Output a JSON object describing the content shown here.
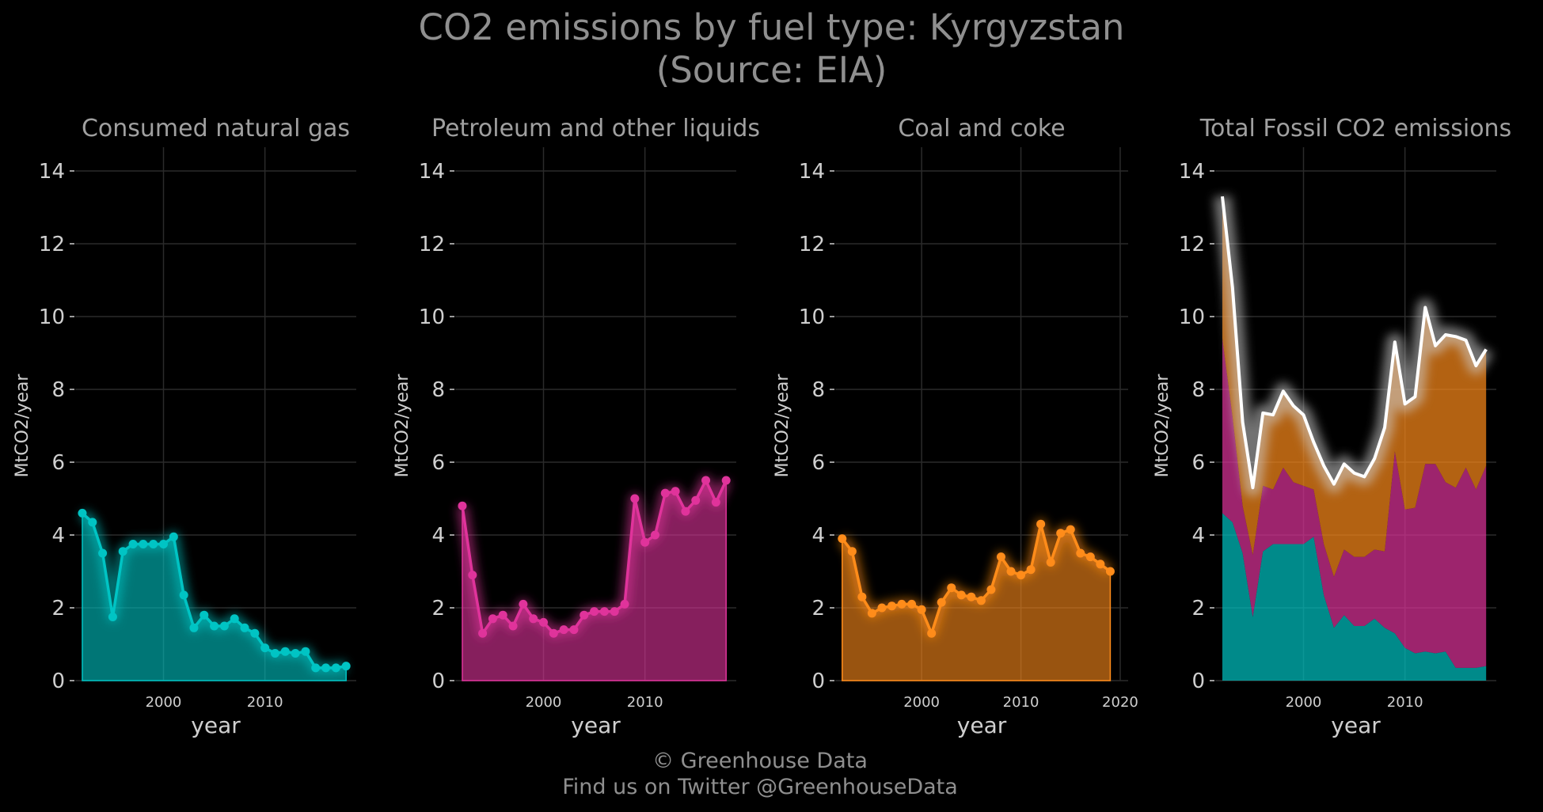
{
  "title": {
    "line1": "CO2 emissions by fuel type: Kyrgyzstan",
    "line2": "(Source: EIA)"
  },
  "caption": {
    "line1": "© Greenhouse Data",
    "line2": "Find us on Twitter @GreenhouseData"
  },
  "colors": {
    "gas": "#00c4c4",
    "petroleum": "#e0339b",
    "coal": "#ff8c1a",
    "total_line": "#ffffff",
    "grid": "#2b2b2b",
    "axis_text": "#cfcfcf",
    "panel_title": "#a0a0a0"
  },
  "chart_data": [
    {
      "type": "area",
      "title": "Consumed natural gas",
      "xlabel": "year",
      "ylabel": "MtCO2/year",
      "ylim": [
        0,
        14
      ],
      "yticks": [
        0,
        2,
        4,
        6,
        8,
        10,
        12,
        14
      ],
      "xticks": [
        2000,
        2010
      ],
      "x": [
        1992,
        1993,
        1994,
        1995,
        1996,
        1997,
        1998,
        1999,
        2000,
        2001,
        2002,
        2003,
        2004,
        2005,
        2006,
        2007,
        2008,
        2009,
        2010,
        2011,
        2012,
        2013,
        2014,
        2015,
        2016,
        2017,
        2018
      ],
      "series": [
        {
          "values": [
            4.6,
            4.35,
            3.5,
            1.75,
            3.55,
            3.75,
            3.75,
            3.75,
            3.75,
            3.95,
            2.35,
            1.45,
            1.8,
            1.5,
            1.5,
            1.7,
            1.45,
            1.3,
            0.9,
            0.75,
            0.8,
            0.75,
            0.8,
            0.35,
            0.35,
            0.35,
            0.4
          ],
          "color": "gas"
        }
      ],
      "grid": true
    },
    {
      "type": "area",
      "title": "Petroleum and other liquids",
      "xlabel": "year",
      "ylabel": "MtCO2/year",
      "ylim": [
        0,
        14
      ],
      "yticks": [
        0,
        2,
        4,
        6,
        8,
        10,
        12,
        14
      ],
      "xticks": [
        2000,
        2010
      ],
      "x": [
        1992,
        1993,
        1994,
        1995,
        1996,
        1997,
        1998,
        1999,
        2000,
        2001,
        2002,
        2003,
        2004,
        2005,
        2006,
        2007,
        2008,
        2009,
        2010,
        2011,
        2012,
        2013,
        2014,
        2015,
        2016,
        2017,
        2018
      ],
      "series": [
        {
          "values": [
            4.8,
            2.9,
            1.3,
            1.7,
            1.8,
            1.5,
            2.1,
            1.7,
            1.6,
            1.3,
            1.4,
            1.4,
            1.8,
            1.9,
            1.9,
            1.9,
            2.1,
            5.0,
            3.8,
            4.0,
            5.15,
            5.2,
            4.65,
            4.95,
            5.5,
            4.9,
            5.5
          ],
          "color": "petroleum"
        }
      ],
      "grid": true
    },
    {
      "type": "area",
      "title": "Coal and coke",
      "xlabel": "year",
      "ylabel": "MtCO2/year",
      "ylim": [
        0,
        14
      ],
      "yticks": [
        0,
        2,
        4,
        6,
        8,
        10,
        12,
        14
      ],
      "xticks": [
        2000,
        2010,
        2020
      ],
      "x": [
        1992,
        1993,
        1994,
        1995,
        1996,
        1997,
        1998,
        1999,
        2000,
        2001,
        2002,
        2003,
        2004,
        2005,
        2006,
        2007,
        2008,
        2009,
        2010,
        2011,
        2012,
        2013,
        2014,
        2015,
        2016,
        2017,
        2018,
        2019
      ],
      "series": [
        {
          "values": [
            3.9,
            3.55,
            2.3,
            1.85,
            2.0,
            2.05,
            2.1,
            2.1,
            1.95,
            1.3,
            2.15,
            2.55,
            2.35,
            2.3,
            2.2,
            2.5,
            3.4,
            3.0,
            2.9,
            3.05,
            4.3,
            3.25,
            4.05,
            4.15,
            3.5,
            3.4,
            3.2,
            3.0
          ],
          "color": "coal"
        }
      ],
      "grid": true
    },
    {
      "type": "area",
      "title": "Total Fossil CO2 emissions",
      "xlabel": "year",
      "ylabel": "MtCO2/year",
      "ylim": [
        0,
        14
      ],
      "yticks": [
        0,
        2,
        4,
        6,
        8,
        10,
        12,
        14
      ],
      "xticks": [
        2000,
        2010
      ],
      "x": [
        1992,
        1993,
        1994,
        1995,
        1996,
        1997,
        1998,
        1999,
        2000,
        2001,
        2002,
        2003,
        2004,
        2005,
        2006,
        2007,
        2008,
        2009,
        2010,
        2011,
        2012,
        2013,
        2014,
        2015,
        2016,
        2017,
        2018
      ],
      "stacked": true,
      "series": [
        {
          "values": [
            4.6,
            4.35,
            3.5,
            1.75,
            3.55,
            3.75,
            3.75,
            3.75,
            3.75,
            3.95,
            2.35,
            1.45,
            1.8,
            1.5,
            1.5,
            1.7,
            1.45,
            1.3,
            0.9,
            0.75,
            0.8,
            0.75,
            0.8,
            0.35,
            0.35,
            0.35,
            0.4
          ],
          "color": "gas"
        },
        {
          "values": [
            4.8,
            2.9,
            1.3,
            1.7,
            1.8,
            1.5,
            2.1,
            1.7,
            1.6,
            1.3,
            1.4,
            1.4,
            1.8,
            1.9,
            1.9,
            1.9,
            2.1,
            5.0,
            3.8,
            4.0,
            5.15,
            5.2,
            4.65,
            4.95,
            5.5,
            4.9,
            5.5
          ],
          "color": "petroleum"
        },
        {
          "values": [
            3.9,
            3.55,
            2.3,
            1.85,
            2.0,
            2.05,
            2.1,
            2.1,
            1.95,
            1.3,
            2.15,
            2.55,
            2.35,
            2.3,
            2.2,
            2.5,
            3.4,
            3.0,
            2.9,
            3.05,
            4.3,
            3.25,
            4.05,
            4.15,
            3.5,
            3.4,
            3.2
          ],
          "color": "coal"
        }
      ],
      "total": [
        13.3,
        10.8,
        7.1,
        5.3,
        7.35,
        7.3,
        7.95,
        7.55,
        7.3,
        6.55,
        5.9,
        5.4,
        5.95,
        5.7,
        5.6,
        6.1,
        6.95,
        9.3,
        7.6,
        7.8,
        10.25,
        9.2,
        9.5,
        9.45,
        9.35,
        8.65,
        9.1
      ],
      "grid": true
    }
  ]
}
